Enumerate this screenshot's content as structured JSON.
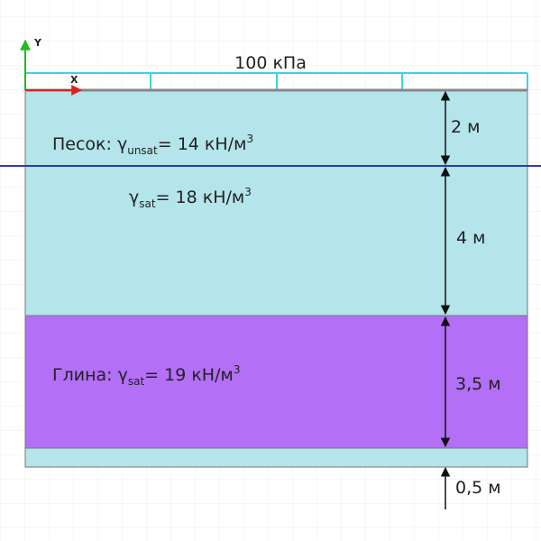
{
  "axes": {
    "y": "Y",
    "x": "X"
  },
  "load": {
    "label": "100 кПа"
  },
  "annotations": [
    {
      "prefix": "Песок: γ",
      "subscript": "unsat",
      "text": "= 14 кН/м",
      "superscript": "3"
    },
    {
      "prefix": "γ",
      "subscript": "sat",
      "text": "= 18 кН/м",
      "superscript": "3"
    },
    {
      "prefix": "Глина: γ",
      "subscript": "sat",
      "text": "= 19 кН/м",
      "superscript": "3"
    }
  ],
  "dimensions": [
    "2 м",
    "4 м",
    "3,5 м",
    "0,5 м"
  ]
}
